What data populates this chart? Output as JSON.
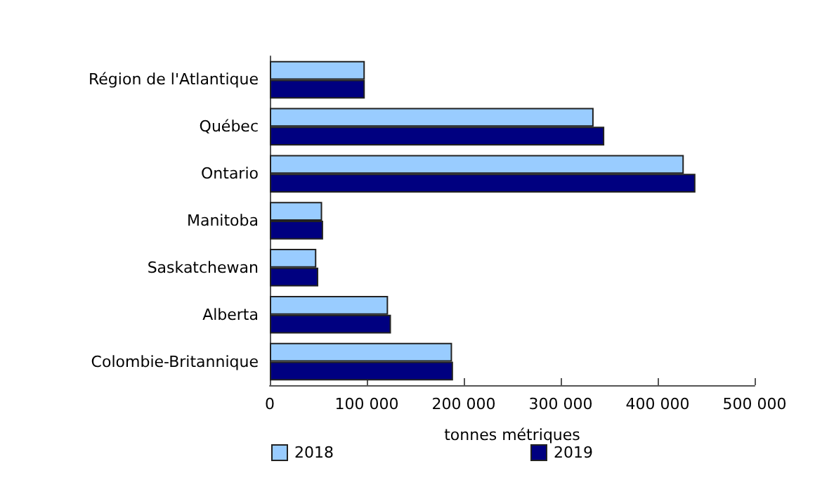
{
  "chart_data": {
    "type": "bar",
    "orientation": "horizontal",
    "xlabel": "tonnes métriques",
    "categories": [
      "Région de l'Atlantique",
      "Québec",
      "Ontario",
      "Manitoba",
      "Saskatchewan",
      "Alberta",
      "Colombie-Britannique"
    ],
    "series": [
      {
        "name": "2018",
        "color": "#99ccff",
        "values": [
          98000,
          334000,
          427000,
          54000,
          48000,
          122000,
          188000
        ]
      },
      {
        "name": "2019",
        "color": "#000080",
        "values": [
          98000,
          345000,
          439000,
          55000,
          50000,
          125000,
          189000
        ]
      }
    ],
    "xlim": [
      0,
      500000
    ],
    "xticks": [
      0,
      100000,
      200000,
      300000,
      400000,
      500000
    ],
    "grid": false,
    "legend": "bottom"
  }
}
